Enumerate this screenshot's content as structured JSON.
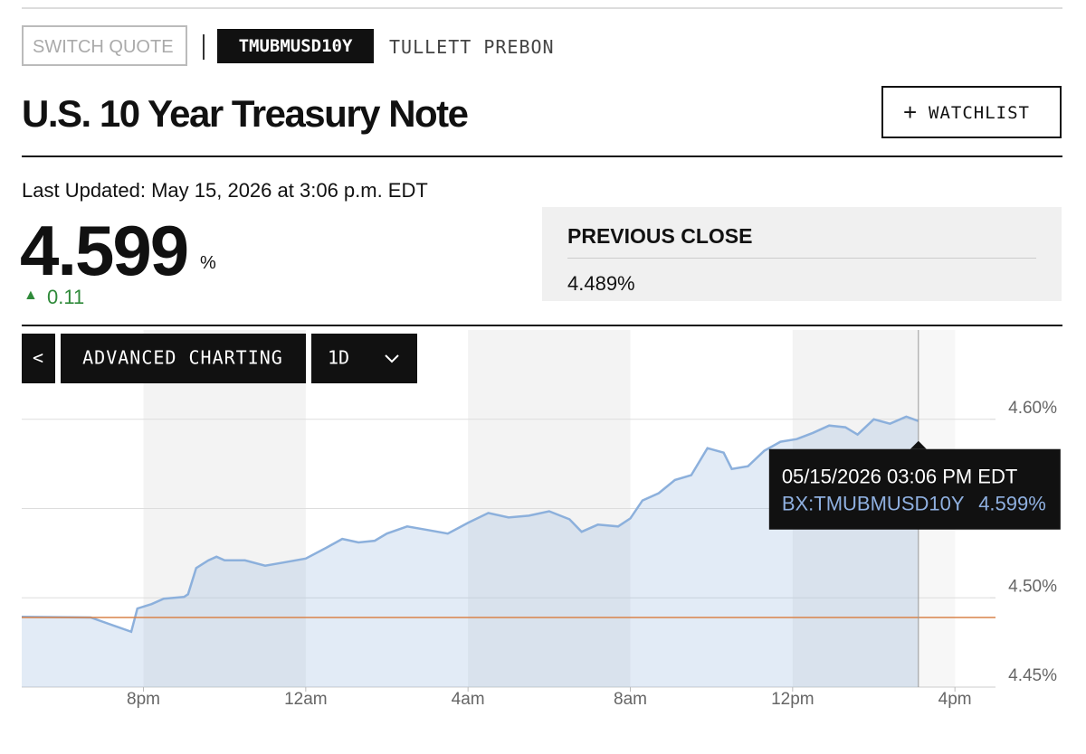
{
  "header": {
    "switch_quote": "SWITCH QUOTE",
    "ticker": "TMUBMUSD10Y",
    "source": "TULLETT PREBON",
    "title": "U.S. 10 Year Treasury Note",
    "watchlist": "WATCHLIST",
    "last_updated": "Last Updated: May 15, 2026 at 3:06 p.m. EDT",
    "price": "4.599",
    "price_unit": "%",
    "change": "0.11",
    "previous_close_label": "PREVIOUS CLOSE",
    "previous_close_value": "4.489%"
  },
  "toolbar": {
    "back": "<",
    "advanced_charting": "ADVANCED CHARTING",
    "range": "1D"
  },
  "tooltip": {
    "time": "05/15/2026 03:06 PM EDT",
    "symbol": "BX:TMUBMUSD10Y",
    "value": "4.599%"
  },
  "chart_data": {
    "type": "line",
    "x": [
      17,
      18.7,
      19.7,
      19.85,
      20.2,
      20.5,
      21.0,
      21.1,
      21.3,
      21.6,
      21.8,
      22.0,
      22.5,
      23.0,
      23.5,
      24.0,
      24.5,
      24.9,
      25.3,
      25.7,
      26.0,
      26.5,
      27.0,
      27.5,
      28.0,
      28.5,
      29.0,
      29.5,
      30.0,
      30.5,
      30.8,
      31.2,
      31.7,
      32.0,
      32.3,
      32.7,
      33.1,
      33.5,
      33.9,
      34.3,
      34.5,
      34.9,
      35.3,
      35.7,
      36.1,
      36.5,
      36.9,
      37.3,
      37.6,
      38.0,
      38.4,
      38.8,
      39.1
    ],
    "series": [
      {
        "color": "#8cb0dc",
        "values": [
          4.4894,
          4.489,
          4.481,
          4.494,
          4.4965,
          4.4995,
          4.5005,
          4.502,
          4.5167,
          4.521,
          4.523,
          4.521,
          4.521,
          4.518,
          4.52,
          4.522,
          4.528,
          4.533,
          4.531,
          4.532,
          4.536,
          4.54,
          4.538,
          4.536,
          4.542,
          4.5475,
          4.545,
          4.546,
          4.5485,
          4.544,
          4.537,
          4.541,
          4.54,
          4.5445,
          4.5545,
          4.5586,
          4.566,
          4.5687,
          4.5838,
          4.5813,
          4.5722,
          4.5737,
          4.5823,
          4.5874,
          4.5889,
          4.5924,
          4.5965,
          4.5955,
          4.5914,
          4.6,
          4.5975,
          4.6015,
          4.599
        ]
      }
    ],
    "xlim": [
      17,
      41
    ],
    "xticks": [
      {
        "value": 20,
        "label": "8pm"
      },
      {
        "value": 24,
        "label": "12am"
      },
      {
        "value": 28,
        "label": "4am"
      },
      {
        "value": 32,
        "label": "8am"
      },
      {
        "value": 36,
        "label": "12pm"
      },
      {
        "value": 40,
        "label": "4pm"
      }
    ],
    "ylim": [
      4.45,
      4.65
    ],
    "yticks": [
      {
        "value": 4.45,
        "label": "4.45%"
      },
      {
        "value": 4.5,
        "label": "4.50%"
      },
      {
        "value": 4.6,
        "label": "4.60%"
      }
    ],
    "ygrid": [
      4.5,
      4.55,
      4.6
    ],
    "reference_line": 4.489,
    "reference_color": "#d9834a"
  }
}
